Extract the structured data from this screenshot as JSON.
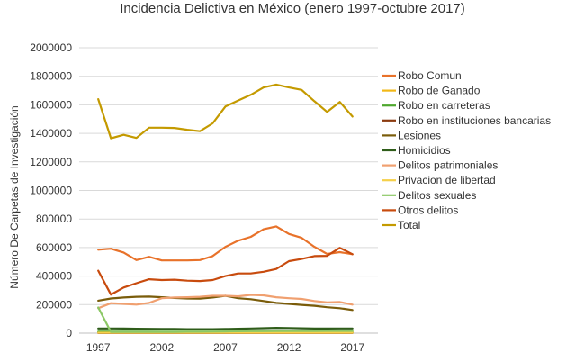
{
  "chart_data": {
    "type": "line",
    "title": "Incidencia Delictiva en México (enero 1997-octubre 2017)",
    "xlabel": "",
    "ylabel": "Número De Carpetas de Investigación",
    "ylim": [
      0,
      2000000
    ],
    "yticks": [
      "0",
      "200000",
      "400000",
      "600000",
      "800000",
      "1000000",
      "1200000",
      "1400000",
      "1600000",
      "1800000",
      "2000000"
    ],
    "xticks": [
      "1997",
      "2002",
      "2007",
      "2012",
      "2017"
    ],
    "x": [
      1997,
      1998,
      1999,
      2000,
      2001,
      2002,
      2003,
      2004,
      2005,
      2006,
      2007,
      2008,
      2009,
      2010,
      2011,
      2012,
      2013,
      2014,
      2015,
      2016,
      2017
    ],
    "grid": true,
    "legend_position": "right",
    "series": [
      {
        "name": "Robo Comun",
        "color": "#E8722A",
        "values": [
          585000,
          592000,
          565000,
          512000,
          535000,
          510000,
          510000,
          510000,
          512000,
          540000,
          605000,
          648000,
          675000,
          728000,
          748000,
          695000,
          668000,
          605000,
          555000,
          568000,
          553000
        ]
      },
      {
        "name": "Robo de Ganado",
        "color": "#F2B817",
        "values": [
          3000,
          3000,
          3000,
          3000,
          3000,
          3000,
          3000,
          3000,
          3000,
          3000,
          3000,
          3000,
          3000,
          3000,
          3000,
          3000,
          3000,
          3000,
          3000,
          3000,
          3000
        ]
      },
      {
        "name": "Robo en carreteras",
        "color": "#4EA72E",
        "values": [
          10000,
          10000,
          10000,
          10000,
          10000,
          10000,
          10000,
          10000,
          10000,
          10000,
          10000,
          10000,
          10000,
          10000,
          10000,
          10000,
          10000,
          10000,
          10000,
          10000,
          10000
        ]
      },
      {
        "name": "Robo en instituciones bancarias",
        "color": "#8B3A0F",
        "values": [
          1000,
          1000,
          1000,
          1000,
          1000,
          1000,
          1000,
          1000,
          1000,
          1000,
          1000,
          1000,
          1000,
          1000,
          1000,
          1000,
          1000,
          1000,
          1000,
          1000,
          1000
        ]
      },
      {
        "name": "Lesiones",
        "color": "#7A5C0A",
        "values": [
          228000,
          243000,
          250000,
          255000,
          256000,
          252000,
          247000,
          243000,
          242000,
          250000,
          262000,
          245000,
          238000,
          225000,
          212000,
          205000,
          198000,
          192000,
          182000,
          175000,
          162000
        ]
      },
      {
        "name": "Homicidios",
        "color": "#2F5D1A",
        "values": [
          33000,
          33000,
          32000,
          31000,
          30000,
          29000,
          29000,
          28000,
          28000,
          28000,
          29000,
          31000,
          33000,
          35000,
          37000,
          36000,
          34000,
          32000,
          32000,
          33000,
          33000
        ]
      },
      {
        "name": "Delitos patrimoniales",
        "color": "#F0A070",
        "values": [
          175000,
          210000,
          205000,
          200000,
          212000,
          245000,
          250000,
          252000,
          255000,
          262000,
          262000,
          258000,
          268000,
          265000,
          252000,
          245000,
          240000,
          225000,
          215000,
          218000,
          200000
        ]
      },
      {
        "name": "Privacion de libertad",
        "color": "#F5D04A",
        "values": [
          3000,
          3000,
          3000,
          3000,
          3000,
          3000,
          3000,
          3000,
          3000,
          3000,
          3000,
          3000,
          3000,
          3000,
          3000,
          3000,
          3000,
          3000,
          3000,
          3000,
          3000
        ]
      },
      {
        "name": "Delitos sexuales",
        "color": "#8CC866",
        "values": [
          180000,
          8000,
          8000,
          8000,
          8000,
          9000,
          9000,
          10000,
          10000,
          11000,
          12000,
          13000,
          14000,
          14000,
          15000,
          15000,
          15000,
          15000,
          16000,
          16000,
          16000
        ]
      },
      {
        "name": "Otros delitos",
        "color": "#C84B0E",
        "values": [
          438000,
          270000,
          320000,
          350000,
          378000,
          372000,
          375000,
          368000,
          365000,
          372000,
          400000,
          418000,
          418000,
          430000,
          450000,
          505000,
          520000,
          540000,
          542000,
          598000,
          553000
        ]
      },
      {
        "name": "Total",
        "color": "#C49A00",
        "values": [
          1640000,
          1365000,
          1390000,
          1368000,
          1440000,
          1440000,
          1438000,
          1425000,
          1415000,
          1470000,
          1588000,
          1630000,
          1670000,
          1722000,
          1742000,
          1722000,
          1705000,
          1625000,
          1550000,
          1620000,
          1518000
        ]
      }
    ]
  }
}
